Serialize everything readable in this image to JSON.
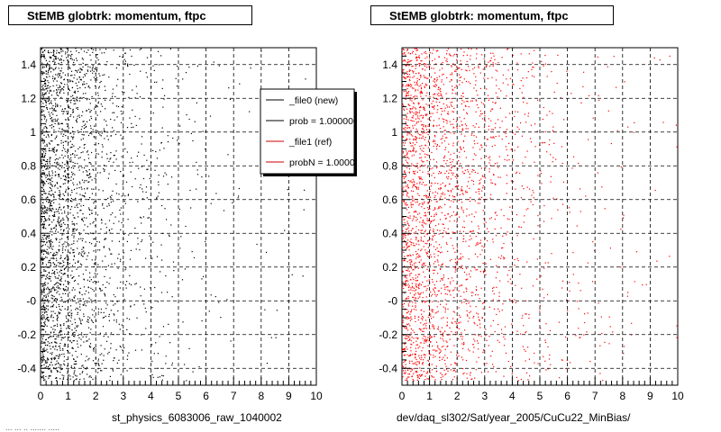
{
  "chart_data": [
    {
      "type": "scatter",
      "title": "StEMB globtrk: momentum, ftpc",
      "xlabel": "st_physics_6083006_raw_1040002",
      "ylabel": "",
      "xlim": [
        0,
        10
      ],
      "ylim": [
        -0.5,
        1.5
      ],
      "x_ticks": [
        "0",
        "1",
        "2",
        "3",
        "4",
        "5",
        "6",
        "7",
        "8",
        "9",
        "10"
      ],
      "y_ticks": [
        {
          "value": -0.4,
          "label": "-0.4"
        },
        {
          "value": -0.2,
          "label": "-0.2"
        },
        {
          "value": 0.0,
          "label": "-0"
        },
        {
          "value": 0.2,
          "label": "0.2"
        },
        {
          "value": 0.4,
          "label": "0.4"
        },
        {
          "value": 0.6,
          "label": "0.6"
        },
        {
          "value": 0.8,
          "label": "0.8"
        },
        {
          "value": 1.0,
          "label": "1"
        },
        {
          "value": 1.2,
          "label": "1.2"
        },
        {
          "value": 1.4,
          "label": "1.4"
        }
      ],
      "grid": true,
      "series": [
        {
          "color": "#000000"
        }
      ],
      "legend": {
        "placement": "top-right",
        "entries": [
          {
            "label": "_file0 (new)",
            "color": "#000000"
          },
          {
            "label": "prob = 1.000000",
            "color": "#000000"
          },
          {
            "label": "_file1 (ref)",
            "color": "#cc0000"
          },
          {
            "label": "probN = 1.000000",
            "color": "#cc0000"
          }
        ]
      },
      "density_profile": {
        "x_scale": 1.4,
        "n_points": 2600,
        "seed": 11
      }
    },
    {
      "type": "scatter",
      "title": "StEMB globtrk: momentum, ftpc",
      "xlabel": "dev/daq_sl302/Sat/year_2005/CuCu22_MinBias/",
      "ylabel": "",
      "xlim": [
        0,
        10
      ],
      "ylim": [
        -0.5,
        1.5
      ],
      "x_ticks": [
        "0",
        "1",
        "2",
        "3",
        "4",
        "5",
        "6",
        "7",
        "8",
        "9",
        "10"
      ],
      "y_ticks": [
        {
          "value": -0.4,
          "label": "-0.4"
        },
        {
          "value": -0.2,
          "label": "-0.2"
        },
        {
          "value": 0.0,
          "label": "-0"
        },
        {
          "value": 0.2,
          "label": "0.2"
        },
        {
          "value": 0.4,
          "label": "0.4"
        },
        {
          "value": 0.6,
          "label": "0.6"
        },
        {
          "value": 0.8,
          "label": "0.8"
        },
        {
          "value": 1.0,
          "label": "1"
        },
        {
          "value": 1.2,
          "label": "1.2"
        },
        {
          "value": 1.4,
          "label": "1.4"
        }
      ],
      "grid": true,
      "series": [
        {
          "color": "#ff0000"
        }
      ],
      "density_profile": {
        "x_scale": 1.9,
        "n_points": 2600,
        "seed": 29
      }
    }
  ],
  "footer_text": "... ... .. ....... ....."
}
